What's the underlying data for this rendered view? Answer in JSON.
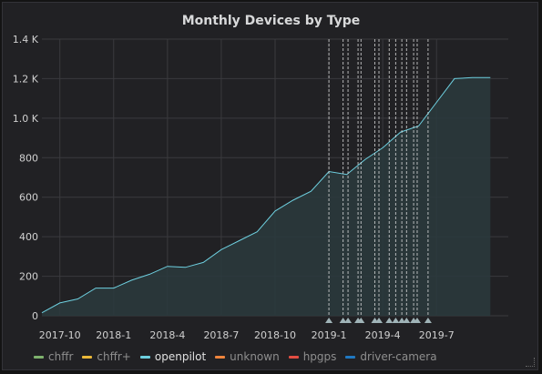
{
  "panel": {
    "title": "Monthly Devices by Type"
  },
  "chart_data": {
    "type": "area",
    "title": "Monthly Devices by Type",
    "xlabel": "",
    "ylabel": "",
    "ylim": [
      0,
      1400
    ],
    "y_ticks": [
      0,
      200,
      400,
      600,
      800,
      1000,
      1200,
      1400
    ],
    "y_tick_labels": [
      "0",
      "200",
      "400",
      "600",
      "800",
      "1.0 K",
      "1.2 K",
      "1.4 K"
    ],
    "x_range": [
      "2017-09",
      "2019-11"
    ],
    "x_ticks": [
      "2017-10",
      "2018-1",
      "2018-4",
      "2018-7",
      "2018-10",
      "2019-1",
      "2019-4",
      "2019-7"
    ],
    "grid": true,
    "legend_position": "bottom",
    "series": [
      {
        "name": "openpilot",
        "color": "#6ed0e0",
        "x": [
          "2017-09",
          "2017-10",
          "2017-11",
          "2017-12",
          "2018-01",
          "2018-02",
          "2018-03",
          "2018-04",
          "2018-05",
          "2018-06",
          "2018-07",
          "2018-08",
          "2018-09",
          "2018-10",
          "2018-11",
          "2018-12",
          "2019-01",
          "2019-02",
          "2019-03",
          "2019-04",
          "2019-05",
          "2019-06",
          "2019-07",
          "2019-08",
          "2019-09",
          "2019-10"
        ],
        "values": [
          15,
          65,
          85,
          140,
          140,
          180,
          210,
          250,
          245,
          270,
          335,
          380,
          425,
          530,
          585,
          630,
          730,
          715,
          790,
          850,
          930,
          960,
          1080,
          1200,
          1205,
          1205
        ]
      }
    ],
    "annotations": [
      "2019-01-01",
      "2019-01-25",
      "2019-02-03",
      "2019-02-20",
      "2019-02-25",
      "2019-03-18",
      "2019-03-25",
      "2019-04-12",
      "2019-04-23",
      "2019-05-03",
      "2019-05-11",
      "2019-05-23",
      "2019-05-29",
      "2019-06-17"
    ],
    "legend": [
      {
        "name": "chffr",
        "color": "#7eb26d",
        "active": false
      },
      {
        "name": "chffr+",
        "color": "#eab839",
        "active": false
      },
      {
        "name": "openpilot",
        "color": "#6ed0e0",
        "active": true
      },
      {
        "name": "unknown",
        "color": "#ef843c",
        "active": false
      },
      {
        "name": "hpgps",
        "color": "#e24d42",
        "active": false
      },
      {
        "name": "driver-camera",
        "color": "#1f78c1",
        "active": false
      }
    ]
  }
}
